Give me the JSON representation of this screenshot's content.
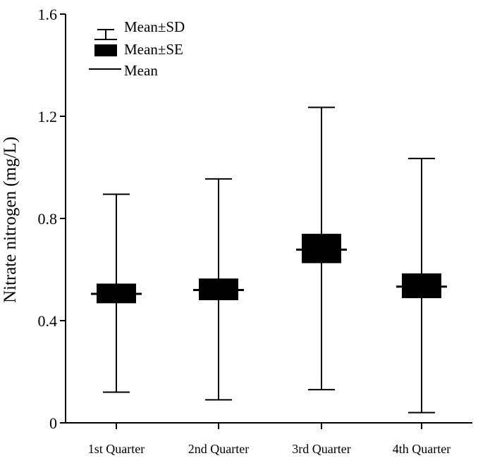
{
  "chart_data": {
    "type": "box",
    "title": "",
    "xlabel": "",
    "ylabel": "Nitrate nitrogen (mg/L)",
    "ylim": [
      0,
      1.6
    ],
    "yticks": [
      0,
      0.4,
      0.8,
      1.2,
      1.6
    ],
    "ytick_labels": [
      "0",
      "0.4",
      "0.8",
      "1.2",
      "1.6"
    ],
    "categories": [
      "1st Quarter",
      "2nd Quarter",
      "3rd Quarter",
      "4th Quarter"
    ],
    "series": [
      {
        "name": "1st Quarter",
        "mean": 0.505,
        "se_low": 0.468,
        "se_high": 0.545,
        "sd_low": 0.12,
        "sd_high": 0.895
      },
      {
        "name": "2nd Quarter",
        "mean": 0.52,
        "se_low": 0.48,
        "se_high": 0.565,
        "sd_low": 0.09,
        "sd_high": 0.955
      },
      {
        "name": "3rd Quarter",
        "mean": 0.678,
        "se_low": 0.625,
        "se_high": 0.74,
        "sd_low": 0.13,
        "sd_high": 1.235
      },
      {
        "name": "4th Quarter",
        "mean": 0.533,
        "se_low": 0.488,
        "se_high": 0.585,
        "sd_low": 0.04,
        "sd_high": 1.035
      }
    ],
    "legend": [
      "Mean±SD",
      "Mean±SE",
      "Mean"
    ],
    "legend_position": "top-left",
    "grid": false,
    "colors": {
      "marks": "#000000",
      "background": "#ffffff"
    }
  }
}
